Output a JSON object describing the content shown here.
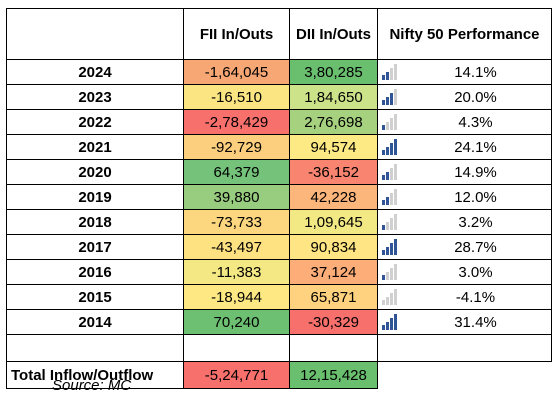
{
  "headers": {
    "year": "",
    "fii": "FII In/Outs",
    "dii": "DII In/Outs",
    "nifty": "Nifty 50 Performance"
  },
  "rows": [
    {
      "year": "2024",
      "fii": "-1,64,045",
      "dii": "3,80,285",
      "nifty": "14.1%",
      "fii_color": "#f6a774",
      "dii_color": "#6abf6e",
      "nifty_level": 2
    },
    {
      "year": "2023",
      "fii": "-16,510",
      "dii": "1,84,650",
      "nifty": "20.0%",
      "fii_color": "#fbe583",
      "dii_color": "#cde38a",
      "nifty_level": 3
    },
    {
      "year": "2022",
      "fii": "-2,78,429",
      "dii": "2,76,698",
      "nifty": "4.3%",
      "fii_color": "#f8706c",
      "dii_color": "#a6d27f",
      "nifty_level": 1
    },
    {
      "year": "2021",
      "fii": "-92,729",
      "dii": "94,574",
      "nifty": "24.1%",
      "fii_color": "#fccf7e",
      "dii_color": "#feea84",
      "nifty_level": 4
    },
    {
      "year": "2020",
      "fii": "64,379",
      "dii": "-36,152",
      "nifty": "14.9%",
      "fii_color": "#75c27b",
      "dii_color": "#f98570",
      "nifty_level": 2
    },
    {
      "year": "2019",
      "fii": "39,880",
      "dii": "42,228",
      "nifty": "12.0%",
      "fii_color": "#98cc7e",
      "dii_color": "#fcb57a",
      "nifty_level": 2
    },
    {
      "year": "2018",
      "fii": "-73,733",
      "dii": "1,09,645",
      "nifty": "3.2%",
      "fii_color": "#fdd780",
      "dii_color": "#f2e884",
      "nifty_level": 1
    },
    {
      "year": "2017",
      "fii": "-43,497",
      "dii": "90,834",
      "nifty": "28.7%",
      "fii_color": "#fee282",
      "dii_color": "#ffe583",
      "nifty_level": 4
    },
    {
      "year": "2016",
      "fii": "-11,383",
      "dii": "37,124",
      "nifty": "3.0%",
      "fii_color": "#f4e884",
      "dii_color": "#fcad78",
      "nifty_level": 1
    },
    {
      "year": "2015",
      "fii": "-18,944",
      "dii": "65,871",
      "nifty": "-4.1%",
      "fii_color": "#fde883",
      "dii_color": "#fed27f",
      "nifty_level": 0
    },
    {
      "year": "2014",
      "fii": "70,240",
      "dii": "-30,329",
      "nifty": "31.4%",
      "fii_color": "#6dbf72",
      "dii_color": "#f8706c",
      "nifty_level": 4
    }
  ],
  "total": {
    "label": "Total Inflow/Outflow",
    "fii": "-5,24,771",
    "dii": "12,15,428",
    "fii_color": "#f8706c",
    "dii_color": "#6abf6e"
  },
  "source": "Source: MC",
  "icon_colors": {
    "on": "#2f5597",
    "off": "#d0d0d0"
  }
}
